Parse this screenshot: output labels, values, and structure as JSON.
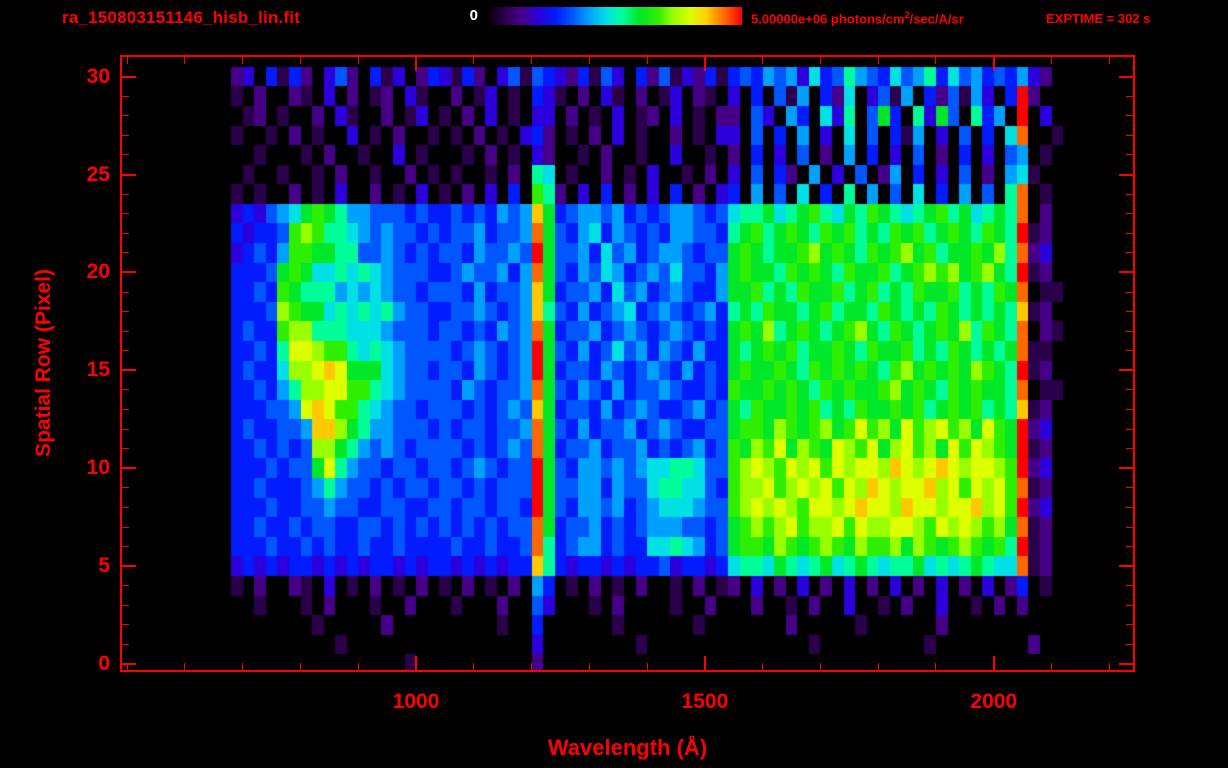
{
  "window": {
    "title": "ra_150803151146_hisb_lin.fit"
  },
  "header": {
    "colorbar_min_label": "0",
    "colorbar_max_prefix": "5.00000e+06 photons/cm",
    "colorbar_max_sup": "2",
    "colorbar_max_suffix": "/sec/A/sr",
    "exptime_label": "EXPTIME = 302 s"
  },
  "axes": {
    "x": {
      "label": "Wavelength (Å)",
      "tick_labels": [
        "1000",
        "1500",
        "2000"
      ],
      "tick_values": [
        1000,
        1500,
        2000
      ],
      "range": [
        491,
        2241
      ],
      "minor_step": 100
    },
    "y": {
      "label": "Spatial Row (Pixel)",
      "tick_labels": [
        "0",
        "5",
        "10",
        "15",
        "20",
        "25",
        "30"
      ],
      "tick_values": [
        0,
        5,
        10,
        15,
        20,
        25,
        30
      ],
      "range": [
        -0.3,
        31.0
      ],
      "minor_step": 1
    }
  },
  "colors": {
    "background": "#000000",
    "axis_red": "#ff0000",
    "colorbar_zero_label": "#ffffff"
  },
  "chart_data": {
    "type": "heatmap",
    "title": "ra_150803151146_hisb_lin.fit",
    "xlabel": "Wavelength (Å)",
    "ylabel": "Spatial Row (Pixel)",
    "x_tick_values": [
      1000,
      1500,
      2000
    ],
    "y_tick_values": [
      0,
      5,
      10,
      15,
      20,
      25,
      30
    ],
    "x_axis_range_angstrom": [
      491,
      2241
    ],
    "y_axis_range_rows": [
      -0.3,
      31.0
    ],
    "colorbar": {
      "min": 0,
      "max": 5000000,
      "min_label": "0",
      "max_label": "5.00000e+06 photons/cm2/sec/A/sr",
      "palette": "rainbow (black-purple-blue-cyan-green-yellow-red)"
    },
    "annotations": [
      "EXPTIME = 302 s"
    ],
    "features": [
      "strong emission line at ~1210-1230 A spanning rows 5-25 with red-saturated core",
      "extended green/yellow-orange blob 770-1030 A, rows 9-23",
      "broad green-to-yellow continuum 1550-2050 A, rows 5-24 (brightest rows 7-12)",
      "hot red column at ~2050 A",
      "faint cyan vertical lines near 1300, 1350, 1450-1500 A",
      "sparse purple/blue speckle noise rows 24-30 and rows 3-5"
    ],
    "grid": {
      "columns": 72,
      "rows_count": 31,
      "first_row": 30,
      "last_row": 0,
      "wavelength_start": 680,
      "wavelength_step": 20,
      "row_order": "top-to-bottom = spatial row 30 down to 0",
      "value_scale": "hex digit 0-15; 15 = 5.00000e+06 photons/cm2/sec/A/sr",
      "cells": [
        "230414203520413024314203515432415304251324145465637458654756847564546320",
        "10200210302012031002013010431020310201302103040516042703516042516304f200",
        "01201002031002013010203010330201030120301022053064073805940839508460f030",
        "10010201003010200101020103420102030100201033050406030705041603050407e001",
        "001000102001003010001020103200102001003001020403050206040305020403056010",
        "010010010200100201010010208701002010300102030504206030502604030502067100",
        "10100201030020103010203040a82030402030402034060507040806050704060508e010",
        "3435679a986655545445454656d94566564545665457889789a8798a98789a897898e020",
        "43445aba887656554545564556e954674654546655489a89a98a9a898a9a89a98a98f120",
        "34546aa9988556545455465565f95564756456654559a9899ab9a98a9ab9a899a9b8e230",
        "44459a97787876555445655646e95465764565755469a998a9a98a99a89abab9ab98f120",
        "4454a988867676554555464556d945564756456544699a898a99a89a898a99a898a9e011",
        "4445ba99787878655445565456d8546456745654564898a9989a8998a9898a989898d120",
        "4544abb8887776555455454656e94556456545654549a9b89a989ab98a989a9b8a98e021",
        "44548ccbaa8787655554565456f9546457564654644989a9a899a98a99a898a98989e110",
        "45447bbcdc9997655455465456f94554654565464549a99a98a9a9a98ab9a9a9ba98f120",
        "445468bbccaa87655554654556e9546546455654454a99a9a98a9a99ab9a98a9a998e011",
        "444556cdcaa876554555454565d945546456544564598a99a9a898a99a9a89a9a898d120",
        "4544556ddb9866555454554556e95464556456544559aa9ba9ab9acab9cabcab9ca9f230",
        "4454545bb98656545555454565e9455645564545645a9bac9ba9cbac9bcab9cacba9f120",
        "44454559c86554554554565455f9546656567788755abcbacbcacbccbdcbcdcbccbaf230",
        "44544456865545455455454555f9556646557887754abbcabcbcacbdcbccdbcacbcae120",
        "44454455655445544554554554f9546656456777655abcbcbaccbcdccbdccbccdbcaf230",
        "44544545544554545454545455e94556454566655459ababcabbcacbbccbacbcbab9e120",
        "44454454544544544445445445e84566454477876459aa9ba9aba9baab9ba9aba9a8f120",
        "34343443434344343443434344d84344343445344347887987897898788978789877e120",
        "102002103010201020102010206401020102001020120302030203020302030203024010",
        "001000102000100200010002005300010200001002000200102003001020030010202000",
        "000000010000020000000001004000000100000010000000200000100000020000000000",
        "000000000100000000000000003000000001000000000000001000000000100000000200",
        "000000000000000100000000002000000000000000000000000000000000000000000000"
      ]
    }
  }
}
